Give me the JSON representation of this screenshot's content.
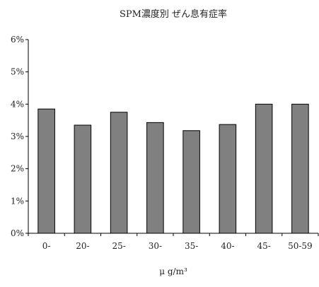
{
  "chart_data": {
    "type": "bar",
    "title": "SPM濃度別 ぜん息有症率",
    "xlabel": "μ g/m³",
    "ylabel": "",
    "categories": [
      "0-",
      "20-",
      "25-",
      "30-",
      "35-",
      "40-",
      "45-",
      "50-59"
    ],
    "values": [
      3.85,
      3.35,
      3.75,
      3.43,
      3.18,
      3.37,
      4.0,
      4.0
    ],
    "value_unit": "%",
    "ylim": [
      0,
      6
    ],
    "yticks": [
      "0%",
      "1%",
      "2%",
      "3%",
      "4%",
      "5%",
      "6%"
    ],
    "grid": false,
    "legend": "none",
    "bar_color": "#808080",
    "bar_edge_color": "#000000"
  }
}
